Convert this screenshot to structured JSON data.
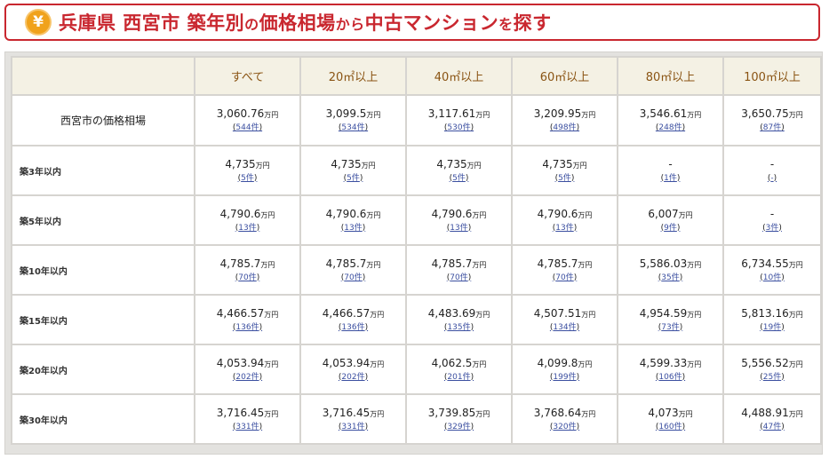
{
  "header": {
    "icon": "yen-coin-icon",
    "yen_glyph": "¥",
    "title_a": "兵庫県 西宮市 築年別",
    "title_b": "の",
    "title_c": "価格相場",
    "title_d": "から",
    "title_e": "中古マンション",
    "title_f": "を",
    "title_g": "探す"
  },
  "table": {
    "columns": [
      "すべて",
      "20㎡以上",
      "40㎡以上",
      "60㎡以上",
      "80㎡以上",
      "100㎡以上"
    ],
    "summary": {
      "label": "西宮市の価格相場",
      "cells": [
        {
          "price": "3,060.76",
          "unit": "万円",
          "count": "544件"
        },
        {
          "price": "3,099.5",
          "unit": "万円",
          "count": "534件"
        },
        {
          "price": "3,117.61",
          "unit": "万円",
          "count": "530件"
        },
        {
          "price": "3,209.95",
          "unit": "万円",
          "count": "498件"
        },
        {
          "price": "3,546.61",
          "unit": "万円",
          "count": "248件"
        },
        {
          "price": "3,650.75",
          "unit": "万円",
          "count": "87件"
        }
      ]
    },
    "rows": [
      {
        "label": "築3年以内",
        "cells": [
          {
            "price": "4,735",
            "unit": "万円",
            "count": "5件"
          },
          {
            "price": "4,735",
            "unit": "万円",
            "count": "5件"
          },
          {
            "price": "4,735",
            "unit": "万円",
            "count": "5件"
          },
          {
            "price": "4,735",
            "unit": "万円",
            "count": "5件"
          },
          {
            "price": "-",
            "unit": "",
            "count": "1件"
          },
          {
            "price": "-",
            "unit": "",
            "count": "-"
          }
        ]
      },
      {
        "label": "築5年以内",
        "cells": [
          {
            "price": "4,790.6",
            "unit": "万円",
            "count": "13件"
          },
          {
            "price": "4,790.6",
            "unit": "万円",
            "count": "13件"
          },
          {
            "price": "4,790.6",
            "unit": "万円",
            "count": "13件"
          },
          {
            "price": "4,790.6",
            "unit": "万円",
            "count": "13件"
          },
          {
            "price": "6,007",
            "unit": "万円",
            "count": "9件"
          },
          {
            "price": "-",
            "unit": "",
            "count": "3件"
          }
        ]
      },
      {
        "label": "築10年以内",
        "cells": [
          {
            "price": "4,785.7",
            "unit": "万円",
            "count": "70件"
          },
          {
            "price": "4,785.7",
            "unit": "万円",
            "count": "70件"
          },
          {
            "price": "4,785.7",
            "unit": "万円",
            "count": "70件"
          },
          {
            "price": "4,785.7",
            "unit": "万円",
            "count": "70件"
          },
          {
            "price": "5,586.03",
            "unit": "万円",
            "count": "35件"
          },
          {
            "price": "6,734.55",
            "unit": "万円",
            "count": "10件"
          }
        ]
      },
      {
        "label": "築15年以内",
        "cells": [
          {
            "price": "4,466.57",
            "unit": "万円",
            "count": "136件"
          },
          {
            "price": "4,466.57",
            "unit": "万円",
            "count": "136件"
          },
          {
            "price": "4,483.69",
            "unit": "万円",
            "count": "135件"
          },
          {
            "price": "4,507.51",
            "unit": "万円",
            "count": "134件"
          },
          {
            "price": "4,954.59",
            "unit": "万円",
            "count": "73件"
          },
          {
            "price": "5,813.16",
            "unit": "万円",
            "count": "19件"
          }
        ]
      },
      {
        "label": "築20年以内",
        "cells": [
          {
            "price": "4,053.94",
            "unit": "万円",
            "count": "202件"
          },
          {
            "price": "4,053.94",
            "unit": "万円",
            "count": "202件"
          },
          {
            "price": "4,062.5",
            "unit": "万円",
            "count": "201件"
          },
          {
            "price": "4,099.8",
            "unit": "万円",
            "count": "199件"
          },
          {
            "price": "4,599.33",
            "unit": "万円",
            "count": "106件"
          },
          {
            "price": "5,556.52",
            "unit": "万円",
            "count": "25件"
          }
        ]
      },
      {
        "label": "築30年以内",
        "cells": [
          {
            "price": "3,716.45",
            "unit": "万円",
            "count": "331件"
          },
          {
            "price": "3,716.45",
            "unit": "万円",
            "count": "331件"
          },
          {
            "price": "3,739.85",
            "unit": "万円",
            "count": "329件"
          },
          {
            "price": "3,768.64",
            "unit": "万円",
            "count": "320件"
          },
          {
            "price": "4,073",
            "unit": "万円",
            "count": "160件"
          },
          {
            "price": "4,488.91",
            "unit": "万円",
            "count": "47件"
          }
        ]
      }
    ]
  },
  "colors": {
    "accent_red": "#c9272f",
    "header_brown": "#8a5413",
    "link_blue": "#3b4fa0",
    "header_bg": "#f4f1e4"
  }
}
